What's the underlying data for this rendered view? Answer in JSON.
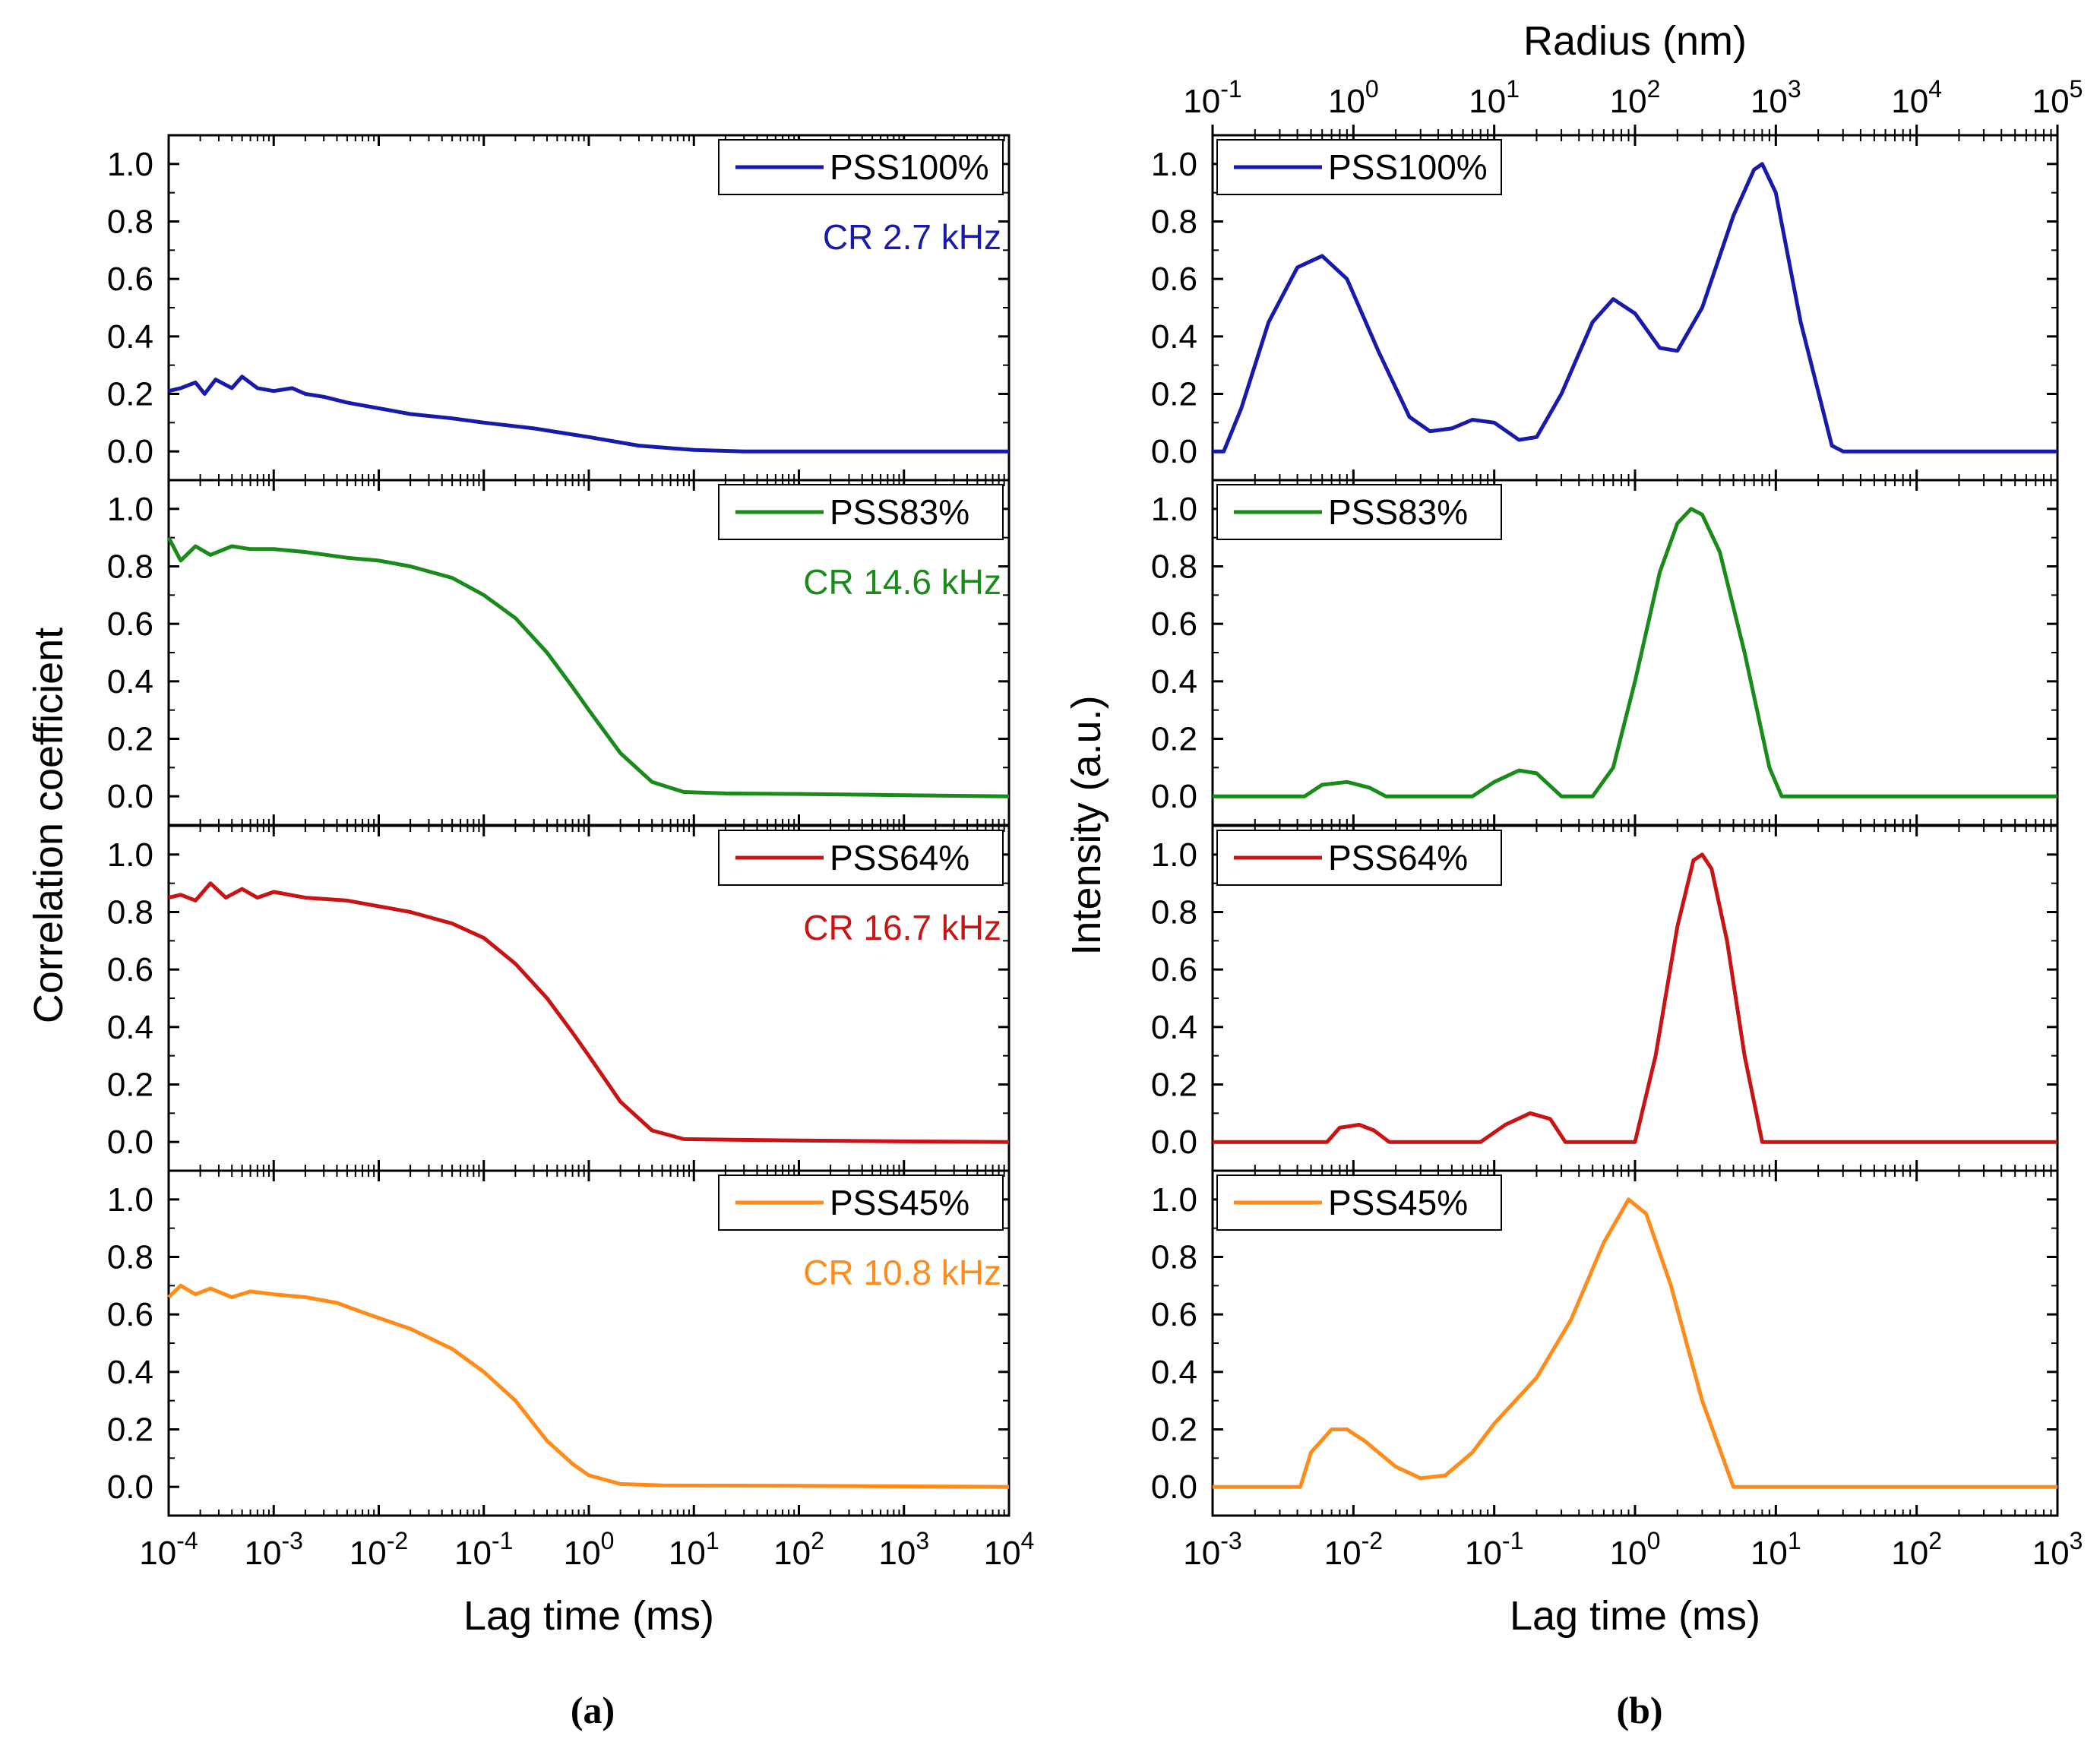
{
  "figure": {
    "caption_a": "(a)",
    "caption_b": "(b)"
  },
  "chart_data": [
    {
      "type": "line",
      "panel": "a",
      "xlabel": "Lag time (ms)",
      "ylabel": "Correlation coefficient",
      "xscale": "log",
      "xlim": [
        0.0001,
        10000
      ],
      "ylim": [
        -0.1,
        1.1
      ],
      "x_tick_labels": [
        "10^-4",
        "10^-3",
        "10^-2",
        "10^-1",
        "10^0",
        "10^1",
        "10^2",
        "10^3",
        "10^4"
      ],
      "y_tick_labels": [
        "0.0",
        "0.2",
        "0.4",
        "0.6",
        "0.8",
        "1.0"
      ],
      "legend_position": "top-right",
      "subplots": [
        {
          "name": "PSS100%",
          "color": "#1a1aaa",
          "annotation": "CR 2.7 kHz",
          "points": [
            [
              0.0001,
              0.21
            ],
            [
              0.00013,
              0.22
            ],
            [
              0.00018,
              0.24
            ],
            [
              0.00022,
              0.2
            ],
            [
              0.00028,
              0.25
            ],
            [
              0.0004,
              0.22
            ],
            [
              0.0005,
              0.26
            ],
            [
              0.0007,
              0.22
            ],
            [
              0.001,
              0.21
            ],
            [
              0.0015,
              0.22
            ],
            [
              0.002,
              0.2
            ],
            [
              0.003,
              0.19
            ],
            [
              0.005,
              0.17
            ],
            [
              0.01,
              0.15
            ],
            [
              0.02,
              0.13
            ],
            [
              0.05,
              0.115
            ],
            [
              0.1,
              0.1
            ],
            [
              0.3,
              0.08
            ],
            [
              1,
              0.05
            ],
            [
              3,
              0.02
            ],
            [
              10,
              0.005
            ],
            [
              30,
              0.0
            ],
            [
              100,
              0.0
            ],
            [
              1000,
              0.0
            ],
            [
              10000,
              0.0
            ]
          ]
        },
        {
          "name": "PSS83%",
          "color": "#1a8a1a",
          "annotation": "CR 14.6 kHz",
          "points": [
            [
              0.0001,
              0.9
            ],
            [
              0.00013,
              0.82
            ],
            [
              0.00018,
              0.87
            ],
            [
              0.00025,
              0.84
            ],
            [
              0.0004,
              0.87
            ],
            [
              0.0006,
              0.86
            ],
            [
              0.001,
              0.86
            ],
            [
              0.002,
              0.85
            ],
            [
              0.005,
              0.83
            ],
            [
              0.01,
              0.82
            ],
            [
              0.02,
              0.8
            ],
            [
              0.05,
              0.76
            ],
            [
              0.1,
              0.7
            ],
            [
              0.2,
              0.62
            ],
            [
              0.4,
              0.5
            ],
            [
              0.7,
              0.38
            ],
            [
              1,
              0.3
            ],
            [
              2,
              0.15
            ],
            [
              4,
              0.05
            ],
            [
              8,
              0.015
            ],
            [
              20,
              0.01
            ],
            [
              100,
              0.008
            ],
            [
              1000,
              0.004
            ],
            [
              10000,
              0.0
            ]
          ]
        },
        {
          "name": "PSS64%",
          "color": "#c81414",
          "annotation": "CR 16.7 kHz",
          "points": [
            [
              0.0001,
              0.85
            ],
            [
              0.00013,
              0.86
            ],
            [
              0.00018,
              0.84
            ],
            [
              0.00025,
              0.9
            ],
            [
              0.00035,
              0.85
            ],
            [
              0.0005,
              0.88
            ],
            [
              0.0007,
              0.85
            ],
            [
              0.001,
              0.87
            ],
            [
              0.002,
              0.85
            ],
            [
              0.005,
              0.84
            ],
            [
              0.01,
              0.82
            ],
            [
              0.02,
              0.8
            ],
            [
              0.05,
              0.76
            ],
            [
              0.1,
              0.71
            ],
            [
              0.2,
              0.62
            ],
            [
              0.4,
              0.5
            ],
            [
              0.7,
              0.38
            ],
            [
              1,
              0.3
            ],
            [
              2,
              0.14
            ],
            [
              4,
              0.04
            ],
            [
              8,
              0.01
            ],
            [
              20,
              0.008
            ],
            [
              100,
              0.005
            ],
            [
              1000,
              0.002
            ],
            [
              10000,
              0.0
            ]
          ]
        },
        {
          "name": "PSS45%",
          "color": "#ff8c1a",
          "annotation": "CR 10.8 kHz",
          "points": [
            [
              0.0001,
              0.66
            ],
            [
              0.00013,
              0.7
            ],
            [
              0.00018,
              0.67
            ],
            [
              0.00025,
              0.69
            ],
            [
              0.0004,
              0.66
            ],
            [
              0.0006,
              0.68
            ],
            [
              0.001,
              0.67
            ],
            [
              0.002,
              0.66
            ],
            [
              0.004,
              0.64
            ],
            [
              0.008,
              0.6
            ],
            [
              0.02,
              0.55
            ],
            [
              0.05,
              0.48
            ],
            [
              0.1,
              0.4
            ],
            [
              0.2,
              0.3
            ],
            [
              0.4,
              0.16
            ],
            [
              0.7,
              0.08
            ],
            [
              1,
              0.04
            ],
            [
              2,
              0.01
            ],
            [
              5,
              0.005
            ],
            [
              100,
              0.004
            ],
            [
              10000,
              0.0
            ]
          ]
        }
      ]
    },
    {
      "type": "line",
      "panel": "b",
      "xlabel": "Lag time (ms)",
      "ylabel": "Intensity (a.u.)",
      "x2label": "Radius (nm)",
      "xscale": "log",
      "xlim": [
        0.001,
        1000
      ],
      "x2lim": [
        0.1,
        100000
      ],
      "ylim": [
        -0.1,
        1.1
      ],
      "x_tick_labels": [
        "10^-3",
        "10^-2",
        "10^-1",
        "10^0",
        "10^1",
        "10^2",
        "10^3"
      ],
      "x2_tick_labels": [
        "10^-1",
        "10^0",
        "10^1",
        "10^2",
        "10^3",
        "10^4",
        "10^5"
      ],
      "y_tick_labels": [
        "0.0",
        "0.2",
        "0.4",
        "0.6",
        "0.8",
        "1.0"
      ],
      "legend_position": "top-left",
      "subplots": [
        {
          "name": "PSS100%",
          "color": "#1a1aaa",
          "points": [
            [
              0.001,
              0.0
            ],
            [
              0.0012,
              0.0
            ],
            [
              0.0016,
              0.15
            ],
            [
              0.0025,
              0.45
            ],
            [
              0.004,
              0.64
            ],
            [
              0.006,
              0.68
            ],
            [
              0.009,
              0.6
            ],
            [
              0.015,
              0.35
            ],
            [
              0.025,
              0.12
            ],
            [
              0.035,
              0.07
            ],
            [
              0.05,
              0.08
            ],
            [
              0.07,
              0.11
            ],
            [
              0.1,
              0.1
            ],
            [
              0.15,
              0.04
            ],
            [
              0.2,
              0.05
            ],
            [
              0.3,
              0.2
            ],
            [
              0.5,
              0.45
            ],
            [
              0.7,
              0.53
            ],
            [
              1,
              0.48
            ],
            [
              1.5,
              0.36
            ],
            [
              2,
              0.35
            ],
            [
              3,
              0.5
            ],
            [
              5,
              0.82
            ],
            [
              7,
              0.98
            ],
            [
              8,
              1.0
            ],
            [
              10,
              0.9
            ],
            [
              15,
              0.45
            ],
            [
              25,
              0.02
            ],
            [
              30,
              0.0
            ],
            [
              100,
              0.0
            ],
            [
              1000,
              0.0
            ]
          ]
        },
        {
          "name": "PSS83%",
          "color": "#1a8a1a",
          "points": [
            [
              0.001,
              0.0
            ],
            [
              0.0045,
              0.0
            ],
            [
              0.006,
              0.04
            ],
            [
              0.009,
              0.05
            ],
            [
              0.013,
              0.03
            ],
            [
              0.017,
              0.0
            ],
            [
              0.07,
              0.0
            ],
            [
              0.1,
              0.05
            ],
            [
              0.15,
              0.09
            ],
            [
              0.2,
              0.08
            ],
            [
              0.3,
              0.0
            ],
            [
              0.5,
              0.0
            ],
            [
              0.7,
              0.1
            ],
            [
              1,
              0.4
            ],
            [
              1.5,
              0.78
            ],
            [
              2,
              0.95
            ],
            [
              2.5,
              1.0
            ],
            [
              3,
              0.98
            ],
            [
              4,
              0.85
            ],
            [
              6,
              0.5
            ],
            [
              9,
              0.1
            ],
            [
              11,
              0.0
            ],
            [
              1000,
              0.0
            ]
          ]
        },
        {
          "name": "PSS64%",
          "color": "#c81414",
          "points": [
            [
              0.001,
              0.0
            ],
            [
              0.0065,
              0.0
            ],
            [
              0.008,
              0.05
            ],
            [
              0.011,
              0.06
            ],
            [
              0.014,
              0.04
            ],
            [
              0.018,
              0.0
            ],
            [
              0.08,
              0.0
            ],
            [
              0.12,
              0.06
            ],
            [
              0.18,
              0.1
            ],
            [
              0.25,
              0.08
            ],
            [
              0.32,
              0.0
            ],
            [
              1,
              0.0
            ],
            [
              1.4,
              0.3
            ],
            [
              2,
              0.75
            ],
            [
              2.6,
              0.98
            ],
            [
              3,
              1.0
            ],
            [
              3.5,
              0.95
            ],
            [
              4.5,
              0.7
            ],
            [
              6,
              0.3
            ],
            [
              8,
              0.0
            ],
            [
              1000,
              0.0
            ]
          ]
        },
        {
          "name": "PSS45%",
          "color": "#ff8c1a",
          "points": [
            [
              0.001,
              0.0
            ],
            [
              0.0042,
              0.0
            ],
            [
              0.005,
              0.12
            ],
            [
              0.007,
              0.2
            ],
            [
              0.009,
              0.2
            ],
            [
              0.012,
              0.16
            ],
            [
              0.02,
              0.07
            ],
            [
              0.03,
              0.03
            ],
            [
              0.045,
              0.04
            ],
            [
              0.07,
              0.12
            ],
            [
              0.1,
              0.22
            ],
            [
              0.2,
              0.38
            ],
            [
              0.35,
              0.58
            ],
            [
              0.6,
              0.85
            ],
            [
              0.9,
              1.0
            ],
            [
              1.2,
              0.95
            ],
            [
              1.8,
              0.7
            ],
            [
              3,
              0.3
            ],
            [
              5,
              0.0
            ],
            [
              1000,
              0.0
            ]
          ]
        }
      ]
    }
  ]
}
